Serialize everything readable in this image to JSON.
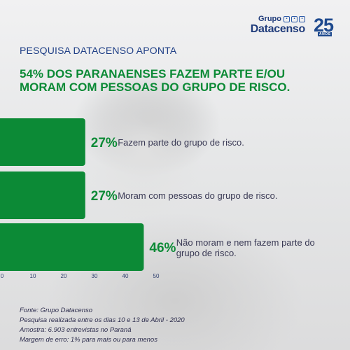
{
  "brand": {
    "group_label": "Grupo",
    "name": "Datacenso",
    "anniversary": "25",
    "anniversary_label": "ANOS"
  },
  "kicker": "PESQUISA DATACENSO APONTA",
  "headline": "54% DOS PARANAENSES FAZEM PARTE E/OU MORAM COM PESSOAS DO GRUPO DE RISCO.",
  "colors": {
    "bar": "#0c8a36",
    "value_text": "#0c8a36",
    "label_text": "#3a3a55",
    "heading_blue": "#1f3f86"
  },
  "chart_data": {
    "type": "bar",
    "orientation": "horizontal",
    "categories": [
      "Fazem parte do grupo de risco.",
      "Moram com pessoas do grupo de risco.",
      "Não moram e nem fazem parte do grupo de risco."
    ],
    "values": [
      27,
      27,
      46
    ],
    "value_labels": [
      "27%",
      "27%",
      "46%"
    ],
    "xlim": [
      0,
      50
    ],
    "xticks": [
      0,
      10,
      20,
      30,
      40,
      50
    ],
    "grid": false
  },
  "notes": [
    "Fonte: Grupo Datacenso",
    "Pesquisa realizada entre os dias 10 e 13 de Abril - 2020",
    "Amostra: 6.903 entrevistas no Paraná",
    "Margem de erro: 1% para mais ou para menos"
  ]
}
